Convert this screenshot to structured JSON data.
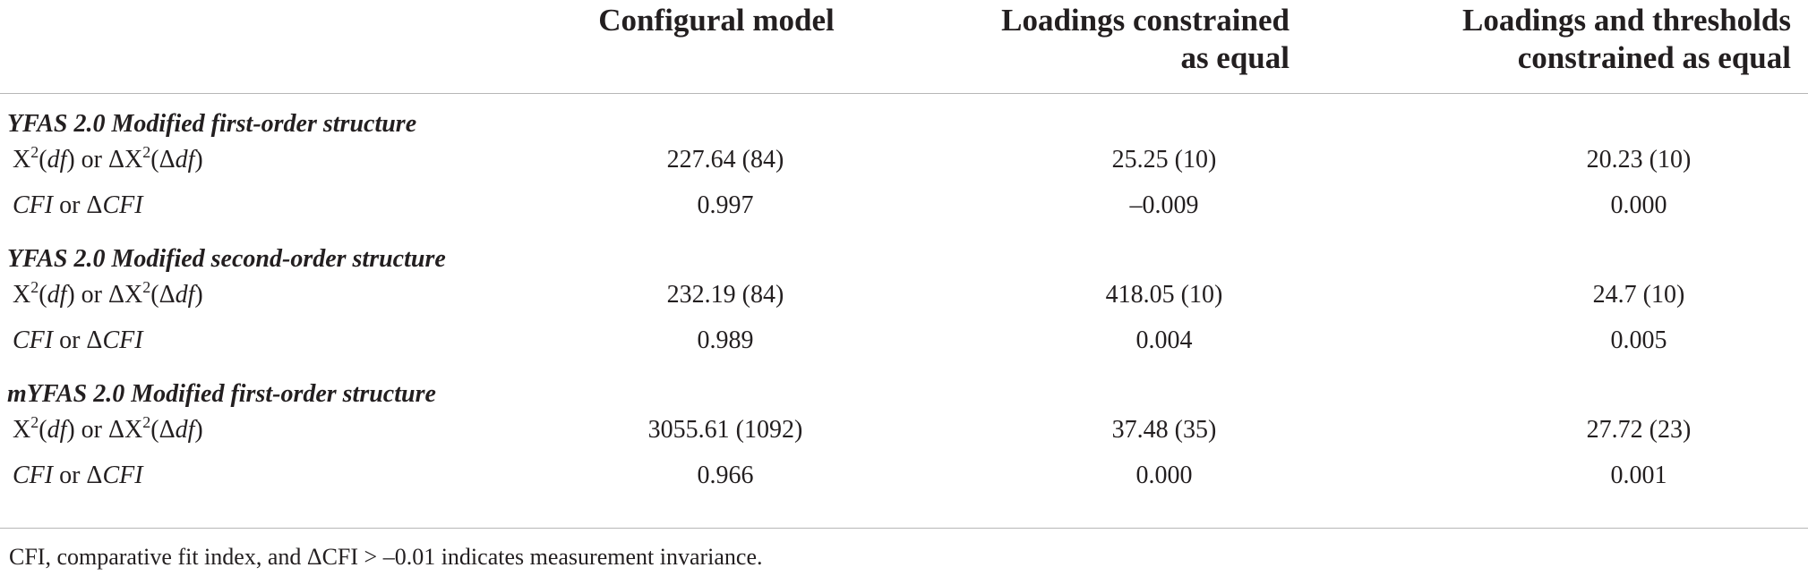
{
  "table": {
    "headers": [
      "Configural model",
      "Loadings constrained\nas equal",
      "Loadings and thresholds\nconstrained as equal"
    ],
    "row_labels": {
      "chi_square": "X²(df) or ΔX²(Δdf)",
      "chi_square_base": "X",
      "chi_square_sup": "2",
      "df": "df",
      "or": " or ",
      "delta": "Δ",
      "cfi": "CFI",
      "cfi_or": " or Δ"
    },
    "sections": [
      {
        "title": "YFAS 2.0 Modified first-order structure",
        "chi_values": [
          "227.64 (84)",
          "25.25 (10)",
          "20.23 (10)"
        ],
        "cfi_values": [
          "0.997",
          "–0.009",
          "0.000"
        ]
      },
      {
        "title": "YFAS 2.0 Modified second-order structure",
        "chi_values": [
          "232.19 (84)",
          "418.05 (10)",
          "24.7 (10)"
        ],
        "cfi_values": [
          "0.989",
          "0.004",
          "0.005"
        ]
      },
      {
        "title": "mYFAS 2.0 Modified first-order structure",
        "chi_values": [
          "3055.61 (1092)",
          "37.48 (35)",
          "27.72 (23)"
        ],
        "cfi_values": [
          "0.966",
          "0.000",
          "0.001"
        ]
      }
    ],
    "footnote": "CFI, comparative fit index, and ΔCFI > –0.01 indicates measurement invariance."
  }
}
